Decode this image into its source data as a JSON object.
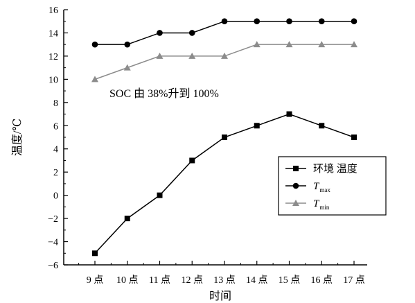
{
  "chart_data": {
    "type": "line",
    "xlabel": "时间",
    "ylabel": "温度/℃",
    "categories": [
      "9 点",
      "10 点",
      "11 点",
      "12 点",
      "13 点",
      "14 点",
      "15 点",
      "16 点",
      "17 点"
    ],
    "ylim": [
      -6,
      16
    ],
    "yticks": [
      -6,
      -4,
      -2,
      0,
      2,
      4,
      6,
      8,
      10,
      12,
      14,
      16
    ],
    "grid": false,
    "legend_position": "center-right",
    "annotation": "SOC 由 38%升到 100%",
    "series": [
      {
        "name": "环境 温度",
        "marker": "square",
        "color": "#000000",
        "values": [
          -5,
          -2,
          0,
          3,
          5,
          6,
          7,
          6,
          5
        ]
      },
      {
        "name": "T",
        "name_subscript": "max",
        "marker": "circle",
        "color": "#000000",
        "values": [
          13,
          13,
          14,
          14,
          15,
          15,
          15,
          15,
          15
        ]
      },
      {
        "name": "T",
        "name_subscript": "min",
        "marker": "triangle",
        "color": "#8c8c8c",
        "values": [
          10,
          11,
          12,
          12,
          12,
          13,
          13,
          13,
          13
        ]
      }
    ]
  }
}
